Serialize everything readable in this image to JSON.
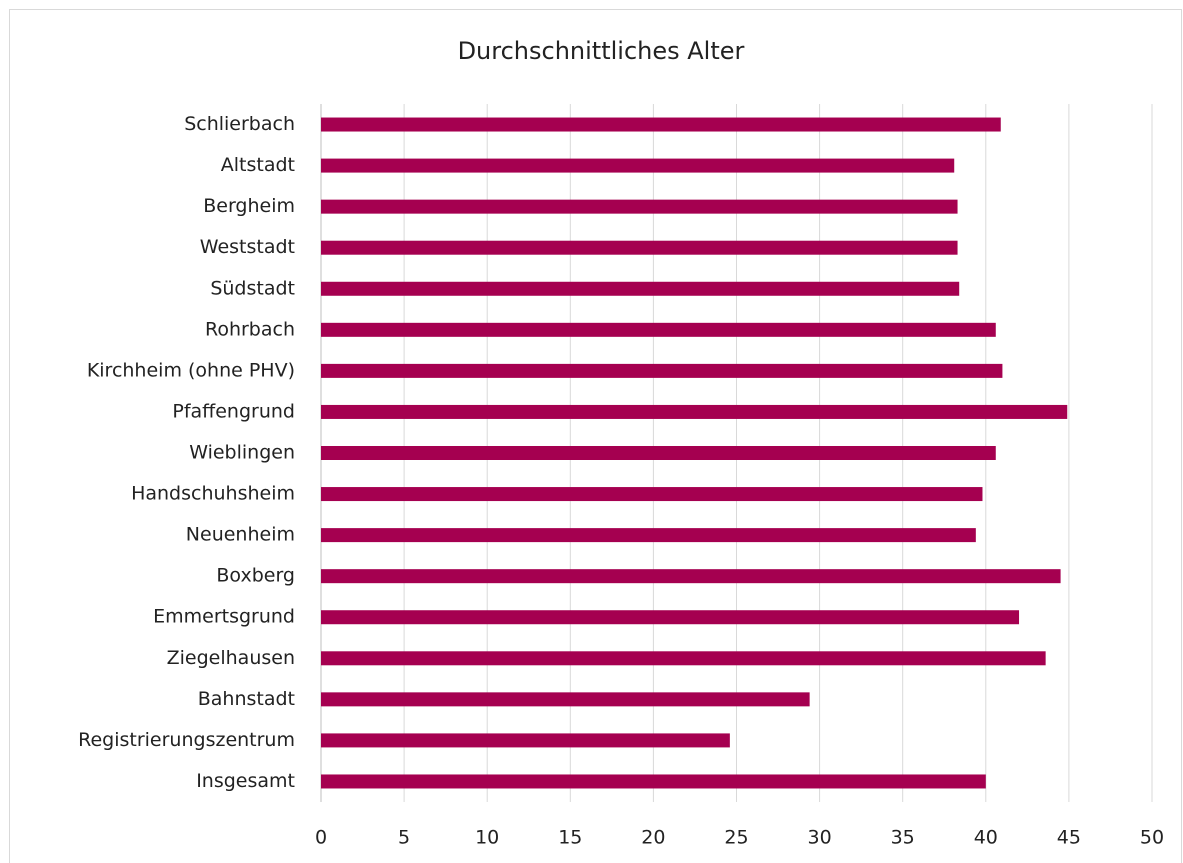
{
  "chart_data": {
    "type": "bar",
    "orientation": "horizontal",
    "title": "Durchschnittliches Alter",
    "categories": [
      "Schlierbach",
      "Altstadt",
      "Bergheim",
      "Weststadt",
      "Südstadt",
      "Rohrbach",
      "Kirchheim (ohne PHV)",
      "Pfaffengrund",
      "Wieblingen",
      "Handschuhsheim",
      "Neuenheim",
      "Boxberg",
      "Emmertsgrund",
      "Ziegelhausen",
      "Bahnstadt",
      "Registrierungszentrum",
      "Insgesamt"
    ],
    "values": [
      40.9,
      38.1,
      38.3,
      38.3,
      38.4,
      40.6,
      41.0,
      44.9,
      40.6,
      39.8,
      39.4,
      44.5,
      42.0,
      43.6,
      29.4,
      24.6,
      40.0
    ],
    "color": "#a50050",
    "xlim": [
      0,
      50
    ],
    "xticks": [
      0,
      5,
      10,
      15,
      20,
      25,
      30,
      35,
      40,
      45,
      50
    ],
    "grid": true
  }
}
